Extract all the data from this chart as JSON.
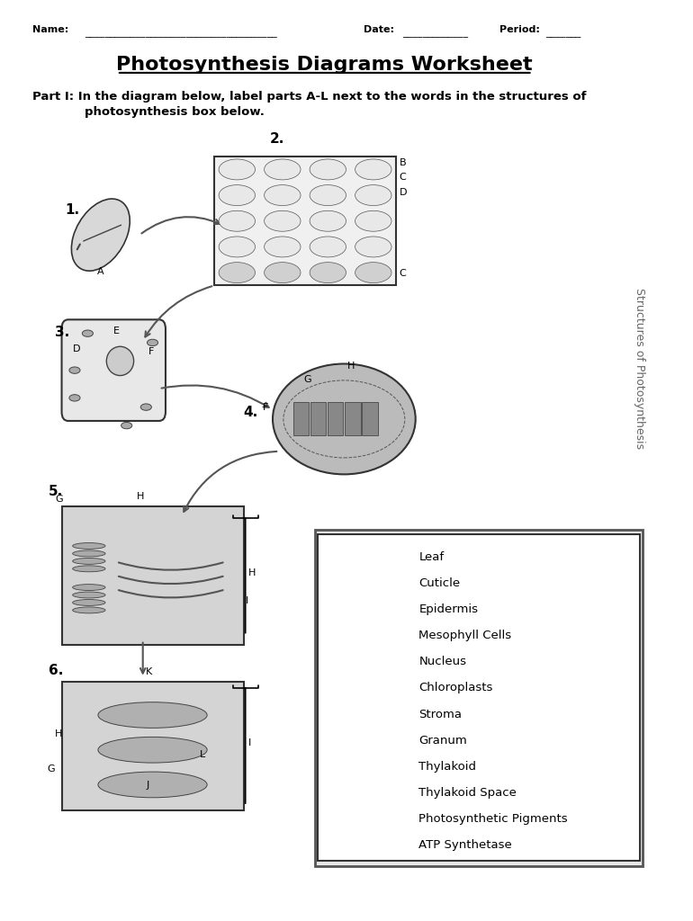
{
  "title": "Photosynthesis Diagrams Worksheet",
  "box_items": [
    "Leaf",
    "Cuticle",
    "Epidermis",
    "Mesophyll Cells",
    "Nucleus",
    "Chloroplasts",
    "Stroma",
    "Granum",
    "Thylakoid",
    "Thylakoid Space",
    "Photosynthetic Pigments",
    "ATP Synthetase"
  ],
  "bg_color": "#ffffff",
  "text_color": "#000000"
}
